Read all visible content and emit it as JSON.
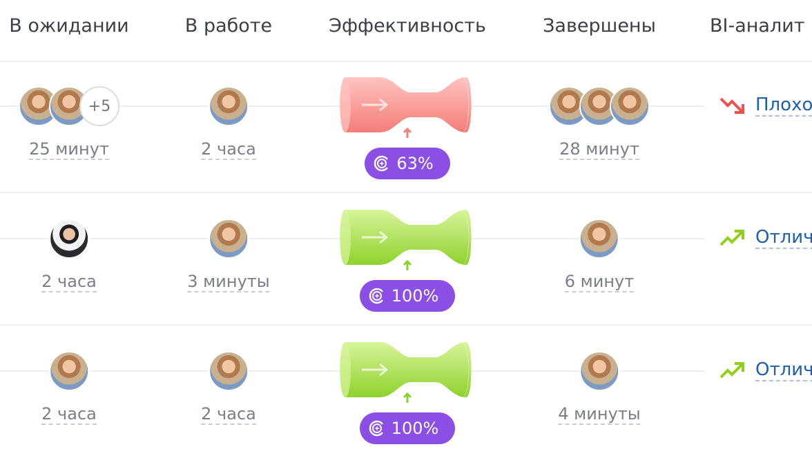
{
  "header": {
    "columns": [
      "В ожидании",
      "В работе",
      "Эффективность",
      "Завершены",
      "BI-аналит"
    ]
  },
  "colors": {
    "bad": "#f47c7c",
    "good": "#9bd93a",
    "pill": "#8b4fe6",
    "link": "#1f5fb0"
  },
  "rows": [
    {
      "waiting": {
        "avatars": 2,
        "more": "+5",
        "time": "25 минут"
      },
      "working": {
        "time": "2 часа"
      },
      "efficiency": {
        "status": "bad",
        "value": "63%"
      },
      "done": {
        "avatars": 3,
        "time": "28 минут"
      },
      "bi": {
        "trend": "trend-down-icon",
        "label": "Плохо"
      }
    },
    {
      "waiting": {
        "avatars": 1,
        "time": "2 часа"
      },
      "working": {
        "time": "3 минуты"
      },
      "efficiency": {
        "status": "good",
        "value": "100%"
      },
      "done": {
        "avatars": 1,
        "time": "6 минут"
      },
      "bi": {
        "trend": "trend-up-icon",
        "label": "Отлич"
      }
    },
    {
      "waiting": {
        "avatars": 1,
        "time": "2 часа"
      },
      "working": {
        "time": "2 часа"
      },
      "efficiency": {
        "status": "good",
        "value": "100%"
      },
      "done": {
        "avatars": 1,
        "time": "4 минуты"
      },
      "bi": {
        "trend": "trend-up-icon",
        "label": "Отлич"
      }
    }
  ]
}
